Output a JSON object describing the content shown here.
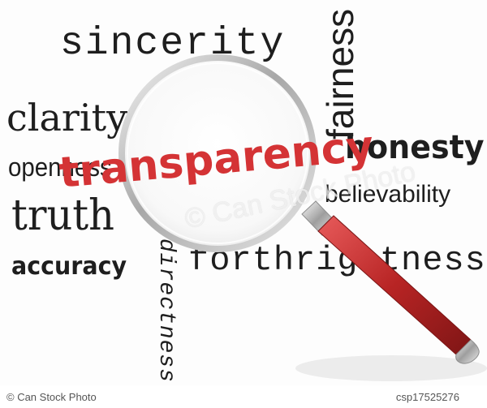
{
  "words": {
    "sincerity": "sincerity",
    "clarity": "clarity",
    "openness": "openness",
    "truth": "truth",
    "accuracy": "accuracy",
    "fairness": "fairness",
    "honesty": "honesty",
    "believability": "believability",
    "directness": "directness",
    "forthrightness": "forthrightness",
    "transparency": "transparency"
  },
  "watermark": "© Can Stock Photo",
  "footer": {
    "copyright": "© Can Stock Photo",
    "image_code": "csp17525276"
  },
  "colors": {
    "highlight_word": "#d43335",
    "handle": "#b72424",
    "lens_rim": "#b9b9b9",
    "text": "#1e1e1e"
  }
}
